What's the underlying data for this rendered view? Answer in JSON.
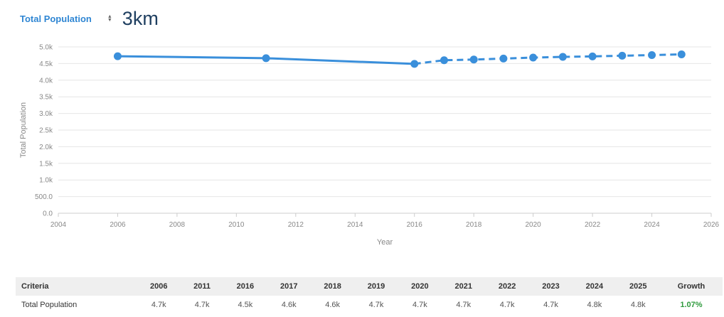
{
  "header": {
    "metric_label": "Total Population",
    "radius_value": "3km"
  },
  "colors": {
    "accent": "#3a8fdb",
    "growth": "#2e9a3c"
  },
  "chart_data": {
    "type": "line",
    "xlabel": "Year",
    "ylabel": "Total Population",
    "xlim": [
      2004,
      2026
    ],
    "ylim": [
      0,
      5000
    ],
    "x_ticks": [
      "2004",
      "2006",
      "2008",
      "2010",
      "2012",
      "2014",
      "2016",
      "2018",
      "2020",
      "2022",
      "2024",
      "2026"
    ],
    "y_ticks": [
      "0.0",
      "500.0",
      "1.0k",
      "1.5k",
      "2.0k",
      "2.5k",
      "3.0k",
      "3.5k",
      "4.0k",
      "4.5k",
      "5.0k"
    ],
    "grid": true,
    "series": [
      {
        "style": "solid",
        "x": [
          2006,
          2011,
          2016
        ],
        "y": [
          4720,
          4660,
          4490
        ]
      },
      {
        "style": "dashed",
        "x": [
          2016,
          2017,
          2018,
          2019,
          2020,
          2021,
          2022,
          2023,
          2024,
          2025
        ],
        "y": [
          4490,
          4600,
          4620,
          4650,
          4680,
          4700,
          4715,
          4735,
          4755,
          4775
        ]
      }
    ]
  },
  "table": {
    "headers": [
      "Criteria",
      "2006",
      "2011",
      "2016",
      "2017",
      "2018",
      "2019",
      "2020",
      "2021",
      "2022",
      "2023",
      "2024",
      "2025",
      "Growth"
    ],
    "rows": [
      {
        "label": "Total Population",
        "values": [
          "4.7k",
          "4.7k",
          "4.5k",
          "4.6k",
          "4.6k",
          "4.7k",
          "4.7k",
          "4.7k",
          "4.7k",
          "4.7k",
          "4.8k",
          "4.8k"
        ],
        "growth": "1.07%"
      }
    ]
  }
}
